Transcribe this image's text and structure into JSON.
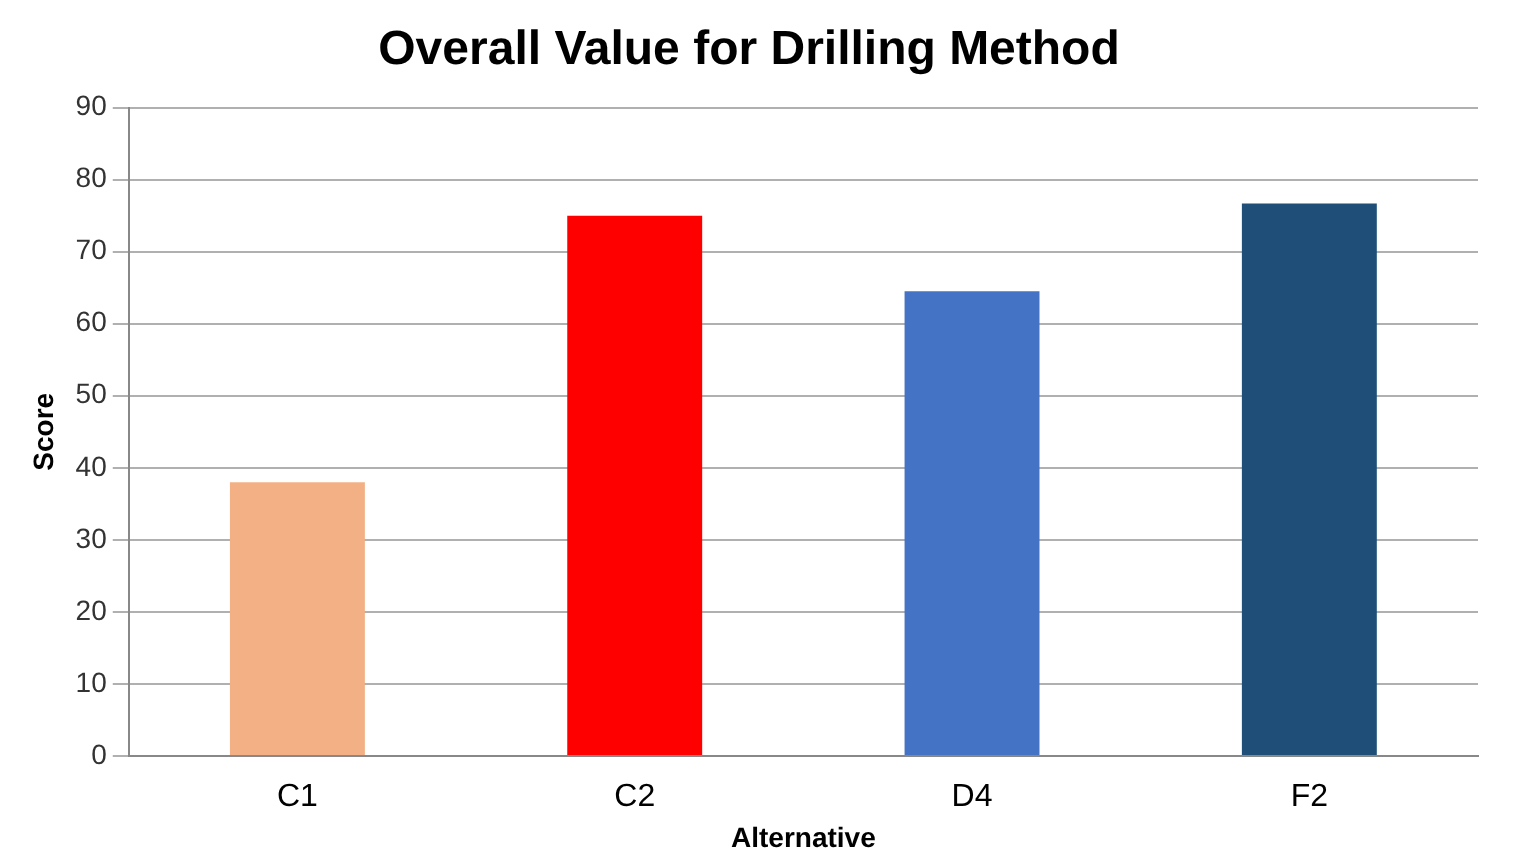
{
  "chart_data": {
    "type": "bar",
    "title": "Overall Value for Drilling Method",
    "xlabel": "Alternative",
    "ylabel": "Score",
    "categories": [
      "C1",
      "C2",
      "D4",
      "F2"
    ],
    "values": [
      38,
      75,
      64.5,
      76.7
    ],
    "colors": [
      "#f2b084",
      "#ff0000",
      "#4472c4",
      "#1f4e79"
    ],
    "ylim": [
      0,
      90
    ],
    "yticks": [
      0,
      10,
      20,
      30,
      40,
      50,
      60,
      70,
      80,
      90
    ],
    "grid": "y",
    "legend": false
  }
}
